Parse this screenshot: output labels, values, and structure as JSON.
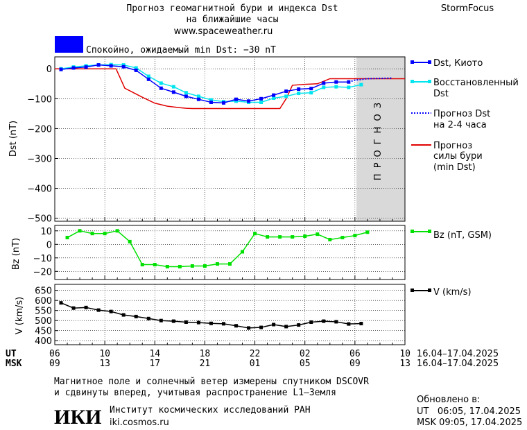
{
  "header": {
    "title_line1": "Прогноз геомагнитной бури и индекса Dst",
    "title_line2": "на ближайшие часы",
    "site": "www.spaceweather.ru",
    "brand": "StormFocus",
    "status": "Спокойно, ожидаемый min Dst: −30 nT",
    "status_color": "#0000ff"
  },
  "forecast_band_label": "ПРОГНОЗ",
  "legend": {
    "dst_kyoto": "Dst, Киото",
    "reconstructed_1": "Восстановленный",
    "reconstructed_2": "Dst",
    "forecast_1": "Прогноз Dst",
    "forecast_2": "на 2-4 часа",
    "storm_1": "Прогноз",
    "storm_2": "силы бури",
    "storm_3": "(min Dst)",
    "bz": "Bz (nT, GSM)",
    "v": "V (km/s)"
  },
  "time_axis": {
    "ut_label": "UT",
    "msk_label": "MSK",
    "ut_ticks": [
      "06",
      "10",
      "14",
      "18",
      "22",
      "02",
      "06",
      "10"
    ],
    "msk_ticks": [
      "09",
      "13",
      "17",
      "21",
      "01",
      "05",
      "09",
      "13"
    ],
    "ut_range": "16.04–17.04.2025",
    "msk_range": "16.04–17.04.2025"
  },
  "footer": {
    "note_line1": "Магнитное поле и солнечный ветер измерены спутником DSCOVR",
    "note_line2": "и сдвинуты вперед, учитывая распространение L1–Земля",
    "logo": "ИКИ",
    "institute": "Институт космических исследований РАН",
    "institute_url": "iki.cosmos.ru",
    "updated_label": "Обновлено в:",
    "updated_ut": "UT   06:05, 17.04.2025",
    "updated_msk": "MSK 09:05, 17.04.2025"
  },
  "colors": {
    "dst": "#0000ff",
    "reconstructed": "#00e5ee",
    "storm": "#e00000",
    "bz": "#00e000",
    "v": "#000000",
    "forecast_band": "#d9d9d9"
  },
  "chart_data": [
    {
      "type": "line",
      "panel": "dst",
      "ylabel": "Dst (nT)",
      "ylim": [
        -510,
        40
      ],
      "yticks": [
        0,
        -100,
        -200,
        -300,
        -400,
        -500
      ],
      "x_unit": "hours since 16.04.2025 06:00 UT",
      "xlim": [
        0,
        28
      ],
      "forecast_from": 24,
      "series": [
        {
          "name": "Dst, Киото",
          "x": [
            0.5,
            1.5,
            2.5,
            3.5,
            4.5,
            5.5,
            6.5,
            7.5,
            8.5,
            9.5,
            10.5,
            11.5,
            12.5,
            13.5,
            14.5,
            15.5,
            16.5,
            17.5,
            18.5,
            19.5,
            20.5,
            21.5,
            22.5,
            23.5
          ],
          "y": [
            -2,
            3,
            6,
            13,
            10,
            7,
            -5,
            -35,
            -65,
            -78,
            -92,
            -102,
            -112,
            -114,
            -102,
            -108,
            -100,
            -88,
            -75,
            -68,
            -66,
            -48,
            -44,
            -44
          ]
        },
        {
          "name": "Восстановленный Dst",
          "x": [
            0.5,
            1.5,
            2.5,
            3.5,
            4.5,
            5.5,
            6.5,
            7.5,
            8.5,
            9.5,
            10.5,
            11.5,
            12.5,
            13.5,
            14.5,
            15.5,
            16.5,
            17.5,
            18.5,
            19.5,
            20.5,
            21.5,
            22.5,
            23.5,
            24.5
          ],
          "y": [
            0,
            6,
            10,
            13,
            14,
            13,
            3,
            -25,
            -48,
            -60,
            -80,
            -92,
            -104,
            -110,
            -108,
            -112,
            -112,
            -98,
            -92,
            -82,
            -80,
            -62,
            -60,
            -62,
            -53
          ]
        },
        {
          "name": "Прогноз Dst на 2-4 часа",
          "x": [
            23.5,
            24,
            25,
            26,
            27
          ],
          "y": [
            -44,
            -38,
            -33,
            -32,
            -31
          ]
        },
        {
          "name": "Прогноз силы бури (min Dst)",
          "x": [
            0,
            1,
            2,
            3,
            4,
            4.9,
            5.6,
            6.3,
            7,
            8,
            9,
            10,
            10.5,
            11,
            12,
            13,
            14,
            15,
            16,
            17,
            18,
            18.5,
            19,
            20,
            21,
            22,
            23,
            24,
            25,
            26,
            27,
            28
          ],
          "y": [
            0,
            0,
            0,
            0,
            0,
            0,
            -65,
            -80,
            -95,
            -115,
            -125,
            -130,
            -132,
            -133,
            -133,
            -133,
            -133,
            -133,
            -133,
            -133,
            -133,
            -100,
            -55,
            -52,
            -50,
            -33,
            -33,
            -33,
            -33,
            -33,
            -33,
            -33
          ]
        }
      ]
    },
    {
      "type": "line",
      "panel": "bz",
      "ylabel": "Bz (nT)",
      "ylim": [
        -26,
        14
      ],
      "yticks": [
        10,
        0,
        -10,
        -20
      ],
      "series": [
        {
          "name": "Bz (nT, GSM)",
          "x": [
            1,
            2,
            3,
            4,
            5,
            6,
            7,
            8,
            9,
            10,
            11,
            12,
            13,
            14,
            15,
            16,
            17,
            18,
            19,
            20,
            21,
            22,
            23,
            24,
            25
          ],
          "y": [
            5,
            10,
            8,
            8,
            10,
            2,
            -15,
            -15,
            -16.5,
            -16.5,
            -16,
            -16,
            -14.5,
            -14.5,
            -5.5,
            8,
            5.5,
            5.5,
            5.5,
            6,
            7.5,
            3.5,
            5,
            6.5,
            9
          ]
        }
      ]
    },
    {
      "type": "line",
      "panel": "v",
      "ylabel": "V (km/s)",
      "ylim": [
        380,
        680
      ],
      "yticks": [
        650,
        600,
        550,
        500,
        450,
        400
      ],
      "series": [
        {
          "name": "V (km/s)",
          "x": [
            0.5,
            1.5,
            2.5,
            3.5,
            4.5,
            5.5,
            6.5,
            7.5,
            8.5,
            9.5,
            10.5,
            11.5,
            12.5,
            13.5,
            14.5,
            15.5,
            16.5,
            17.5,
            18.5,
            19.5,
            20.5,
            21.5,
            22.5,
            23.5,
            24.5
          ],
          "y": [
            588,
            562,
            565,
            552,
            545,
            528,
            520,
            510,
            500,
            497,
            492,
            490,
            486,
            484,
            474,
            463,
            466,
            480,
            470,
            478,
            492,
            497,
            494,
            483,
            485
          ]
        }
      ]
    }
  ]
}
